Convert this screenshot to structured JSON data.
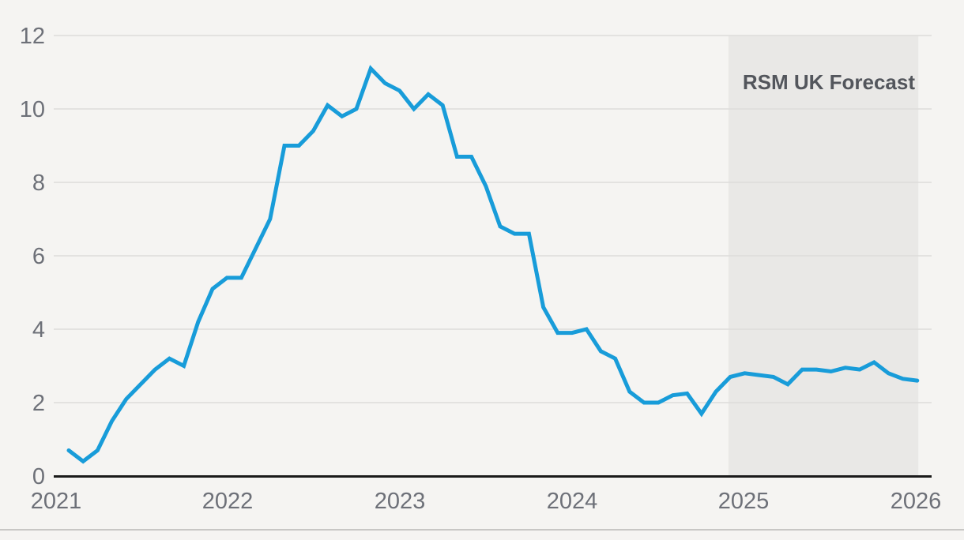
{
  "chart_data": {
    "type": "line",
    "title": "",
    "x_axis": {
      "unit": "year",
      "tick_labels": [
        "2021",
        "2022",
        "2023",
        "2024",
        "2025",
        "2026"
      ],
      "range": [
        2021,
        2026
      ]
    },
    "y_axis": {
      "tick_labels": [
        12,
        10,
        8,
        6,
        4,
        2,
        0
      ],
      "range": [
        0,
        12
      ],
      "grid": true
    },
    "series": [
      {
        "name": "values",
        "frequency": "monthly",
        "start_x": 2021.0,
        "values": [
          0.7,
          0.4,
          0.7,
          1.5,
          2.1,
          2.5,
          2.9,
          3.2,
          3.0,
          4.2,
          5.1,
          5.4,
          5.4,
          6.2,
          7.0,
          9.0,
          9.0,
          9.4,
          10.1,
          9.8,
          10.0,
          11.1,
          10.7,
          10.5,
          10.0,
          10.4,
          10.1,
          8.7,
          8.7,
          7.9,
          6.8,
          6.6,
          6.6,
          4.6,
          3.9,
          3.9,
          4.0,
          3.4,
          3.2,
          2.3,
          2.0,
          2.0,
          2.2,
          2.25,
          1.7,
          2.3,
          2.7,
          2.8,
          2.75,
          2.7,
          2.5,
          2.9,
          2.9,
          2.85,
          2.95,
          2.9,
          3.1,
          2.8,
          2.65,
          2.6
        ]
      }
    ],
    "forecast_region": {
      "label": "RSM UK Forecast",
      "start_x": 2024.833,
      "end_x": 2026.0
    },
    "legend": "none",
    "colors": {
      "line": "#189cd9",
      "forecast_band": "#e9e8e6",
      "background": "#f5f4f2",
      "gridline": "#dddcda",
      "axis_line": "#1a1a1a",
      "tick_label": "#6d7078",
      "annotation_text": "#53565c",
      "separator": "#c8c7c5"
    }
  }
}
